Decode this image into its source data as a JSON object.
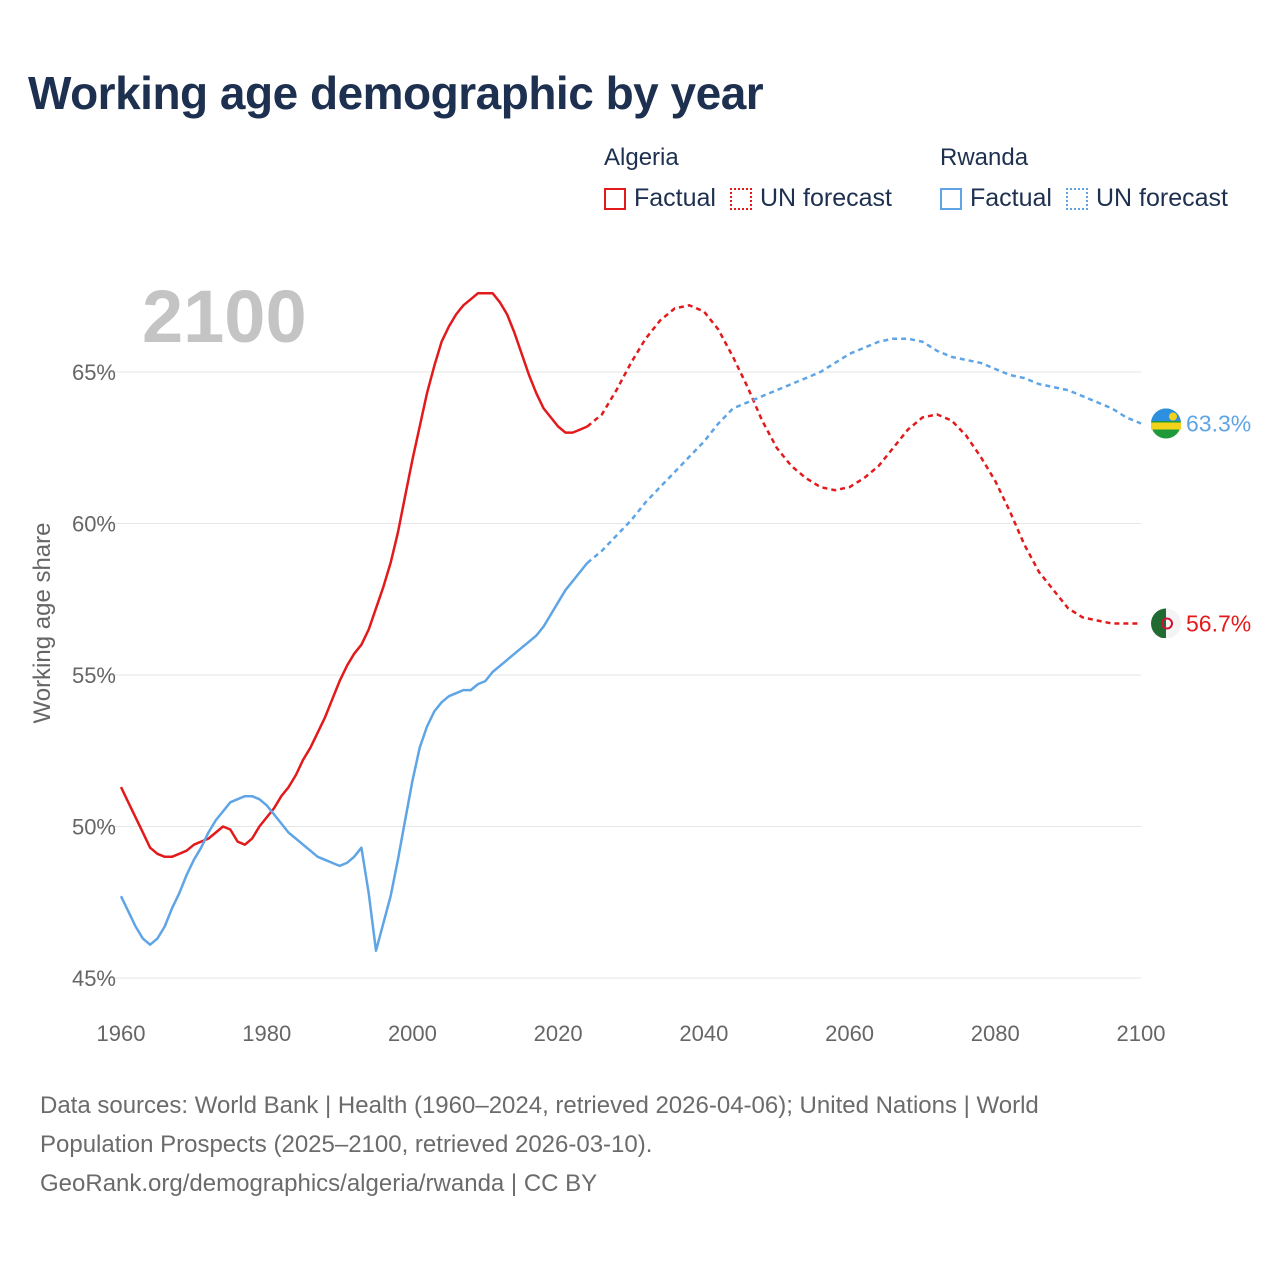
{
  "title": "Working age demographic by year",
  "legend": {
    "groups": [
      {
        "name": "Algeria",
        "color": "#e31a1c",
        "items": [
          {
            "label": "Factual",
            "style": "solid"
          },
          {
            "label": "UN forecast",
            "style": "dotted"
          }
        ]
      },
      {
        "name": "Rwanda",
        "color": "#5fa5e6",
        "items": [
          {
            "label": "Factual",
            "style": "solid"
          },
          {
            "label": "UN forecast",
            "style": "dotted"
          }
        ]
      }
    ]
  },
  "footer": {
    "line1": "Data sources: World Bank | Health (1960–2024, retrieved 2026-04-06); United Nations | World",
    "line2": "Population Prospects (2025–2100, retrieved 2026-03-10).",
    "line3": "GeoRank.org/demographics/algeria/rwanda | CC BY"
  },
  "chart_data": {
    "type": "line",
    "title": "Working age demographic by year",
    "year_label": "2100",
    "xlabel": "",
    "ylabel": "Working age share",
    "xlim": [
      1960,
      2100
    ],
    "ylim": [
      45,
      68
    ],
    "x_ticks": [
      1960,
      1980,
      2000,
      2020,
      2040,
      2060,
      2080,
      2100
    ],
    "y_ticks": [
      {
        "value": 45,
        "label": "45%"
      },
      {
        "value": 50,
        "label": "50%"
      },
      {
        "value": 55,
        "label": "55%"
      },
      {
        "value": 60,
        "label": "60%"
      },
      {
        "value": 65,
        "label": "65%"
      }
    ],
    "forecast_start": 2024,
    "series": [
      {
        "name": "Algeria",
        "color": "#e31a1c",
        "end_label": "56.7%",
        "flag": "algeria-flag",
        "points": [
          [
            1960,
            51.3
          ],
          [
            1961,
            50.8
          ],
          [
            1962,
            50.3
          ],
          [
            1963,
            49.8
          ],
          [
            1964,
            49.3
          ],
          [
            1965,
            49.1
          ],
          [
            1966,
            49.0
          ],
          [
            1967,
            49.0
          ],
          [
            1968,
            49.1
          ],
          [
            1969,
            49.2
          ],
          [
            1970,
            49.4
          ],
          [
            1971,
            49.5
          ],
          [
            1972,
            49.6
          ],
          [
            1973,
            49.8
          ],
          [
            1974,
            50.0
          ],
          [
            1975,
            49.9
          ],
          [
            1976,
            49.5
          ],
          [
            1977,
            49.4
          ],
          [
            1978,
            49.6
          ],
          [
            1979,
            50.0
          ],
          [
            1980,
            50.3
          ],
          [
            1981,
            50.6
          ],
          [
            1982,
            51.0
          ],
          [
            1983,
            51.3
          ],
          [
            1984,
            51.7
          ],
          [
            1985,
            52.2
          ],
          [
            1986,
            52.6
          ],
          [
            1987,
            53.1
          ],
          [
            1988,
            53.6
          ],
          [
            1989,
            54.2
          ],
          [
            1990,
            54.8
          ],
          [
            1991,
            55.3
          ],
          [
            1992,
            55.7
          ],
          [
            1993,
            56.0
          ],
          [
            1994,
            56.5
          ],
          [
            1995,
            57.2
          ],
          [
            1996,
            57.9
          ],
          [
            1997,
            58.7
          ],
          [
            1998,
            59.7
          ],
          [
            1999,
            60.9
          ],
          [
            2000,
            62.1
          ],
          [
            2001,
            63.2
          ],
          [
            2002,
            64.3
          ],
          [
            2003,
            65.2
          ],
          [
            2004,
            66.0
          ],
          [
            2005,
            66.5
          ],
          [
            2006,
            66.9
          ],
          [
            2007,
            67.2
          ],
          [
            2008,
            67.4
          ],
          [
            2009,
            67.6
          ],
          [
            2010,
            67.6
          ],
          [
            2011,
            67.6
          ],
          [
            2012,
            67.3
          ],
          [
            2013,
            66.9
          ],
          [
            2014,
            66.3
          ],
          [
            2015,
            65.6
          ],
          [
            2016,
            64.9
          ],
          [
            2017,
            64.3
          ],
          [
            2018,
            63.8
          ],
          [
            2019,
            63.5
          ],
          [
            2020,
            63.2
          ],
          [
            2021,
            63.0
          ],
          [
            2022,
            63.0
          ],
          [
            2023,
            63.1
          ],
          [
            2024,
            63.2
          ],
          [
            2026,
            63.6
          ],
          [
            2028,
            64.4
          ],
          [
            2030,
            65.3
          ],
          [
            2032,
            66.1
          ],
          [
            2034,
            66.7
          ],
          [
            2036,
            67.1
          ],
          [
            2038,
            67.2
          ],
          [
            2040,
            67.0
          ],
          [
            2042,
            66.4
          ],
          [
            2044,
            65.5
          ],
          [
            2046,
            64.5
          ],
          [
            2048,
            63.4
          ],
          [
            2050,
            62.5
          ],
          [
            2052,
            61.9
          ],
          [
            2054,
            61.5
          ],
          [
            2056,
            61.2
          ],
          [
            2058,
            61.1
          ],
          [
            2060,
            61.2
          ],
          [
            2062,
            61.5
          ],
          [
            2064,
            61.9
          ],
          [
            2066,
            62.5
          ],
          [
            2068,
            63.1
          ],
          [
            2070,
            63.5
          ],
          [
            2072,
            63.6
          ],
          [
            2074,
            63.4
          ],
          [
            2076,
            62.9
          ],
          [
            2078,
            62.2
          ],
          [
            2080,
            61.4
          ],
          [
            2082,
            60.4
          ],
          [
            2084,
            59.3
          ],
          [
            2086,
            58.4
          ],
          [
            2088,
            57.8
          ],
          [
            2090,
            57.2
          ],
          [
            2092,
            56.9
          ],
          [
            2094,
            56.8
          ],
          [
            2096,
            56.7
          ],
          [
            2098,
            56.7
          ],
          [
            2100,
            56.7
          ]
        ]
      },
      {
        "name": "Rwanda",
        "color": "#5fa5e6",
        "end_label": "63.3%",
        "flag": "rwanda-flag",
        "points": [
          [
            1960,
            47.7
          ],
          [
            1961,
            47.2
          ],
          [
            1962,
            46.7
          ],
          [
            1963,
            46.3
          ],
          [
            1964,
            46.1
          ],
          [
            1965,
            46.3
          ],
          [
            1966,
            46.7
          ],
          [
            1967,
            47.3
          ],
          [
            1968,
            47.8
          ],
          [
            1969,
            48.4
          ],
          [
            1970,
            48.9
          ],
          [
            1971,
            49.3
          ],
          [
            1972,
            49.8
          ],
          [
            1973,
            50.2
          ],
          [
            1974,
            50.5
          ],
          [
            1975,
            50.8
          ],
          [
            1976,
            50.9
          ],
          [
            1977,
            51.0
          ],
          [
            1978,
            51.0
          ],
          [
            1979,
            50.9
          ],
          [
            1980,
            50.7
          ],
          [
            1981,
            50.4
          ],
          [
            1982,
            50.1
          ],
          [
            1983,
            49.8
          ],
          [
            1984,
            49.6
          ],
          [
            1985,
            49.4
          ],
          [
            1986,
            49.2
          ],
          [
            1987,
            49.0
          ],
          [
            1988,
            48.9
          ],
          [
            1989,
            48.8
          ],
          [
            1990,
            48.7
          ],
          [
            1991,
            48.8
          ],
          [
            1992,
            49.0
          ],
          [
            1993,
            49.3
          ],
          [
            1994,
            47.8
          ],
          [
            1995,
            45.9
          ],
          [
            1996,
            46.8
          ],
          [
            1997,
            47.7
          ],
          [
            1998,
            48.9
          ],
          [
            1999,
            50.2
          ],
          [
            2000,
            51.5
          ],
          [
            2001,
            52.6
          ],
          [
            2002,
            53.3
          ],
          [
            2003,
            53.8
          ],
          [
            2004,
            54.1
          ],
          [
            2005,
            54.3
          ],
          [
            2006,
            54.4
          ],
          [
            2007,
            54.5
          ],
          [
            2008,
            54.5
          ],
          [
            2009,
            54.7
          ],
          [
            2010,
            54.8
          ],
          [
            2011,
            55.1
          ],
          [
            2012,
            55.3
          ],
          [
            2013,
            55.5
          ],
          [
            2014,
            55.7
          ],
          [
            2015,
            55.9
          ],
          [
            2016,
            56.1
          ],
          [
            2017,
            56.3
          ],
          [
            2018,
            56.6
          ],
          [
            2019,
            57.0
          ],
          [
            2020,
            57.4
          ],
          [
            2021,
            57.8
          ],
          [
            2022,
            58.1
          ],
          [
            2023,
            58.4
          ],
          [
            2024,
            58.7
          ],
          [
            2026,
            59.1
          ],
          [
            2028,
            59.6
          ],
          [
            2030,
            60.1
          ],
          [
            2032,
            60.7
          ],
          [
            2034,
            61.2
          ],
          [
            2036,
            61.7
          ],
          [
            2038,
            62.2
          ],
          [
            2040,
            62.7
          ],
          [
            2042,
            63.3
          ],
          [
            2044,
            63.8
          ],
          [
            2046,
            64.0
          ],
          [
            2048,
            64.2
          ],
          [
            2050,
            64.4
          ],
          [
            2052,
            64.6
          ],
          [
            2054,
            64.8
          ],
          [
            2056,
            65.0
          ],
          [
            2058,
            65.3
          ],
          [
            2060,
            65.6
          ],
          [
            2062,
            65.8
          ],
          [
            2064,
            66.0
          ],
          [
            2066,
            66.1
          ],
          [
            2068,
            66.1
          ],
          [
            2070,
            66.0
          ],
          [
            2072,
            65.7
          ],
          [
            2074,
            65.5
          ],
          [
            2076,
            65.4
          ],
          [
            2078,
            65.3
          ],
          [
            2080,
            65.1
          ],
          [
            2082,
            64.9
          ],
          [
            2084,
            64.8
          ],
          [
            2086,
            64.6
          ],
          [
            2088,
            64.5
          ],
          [
            2090,
            64.4
          ],
          [
            2092,
            64.2
          ],
          [
            2094,
            64.0
          ],
          [
            2096,
            63.8
          ],
          [
            2098,
            63.5
          ],
          [
            2100,
            63.3
          ]
        ]
      }
    ]
  }
}
